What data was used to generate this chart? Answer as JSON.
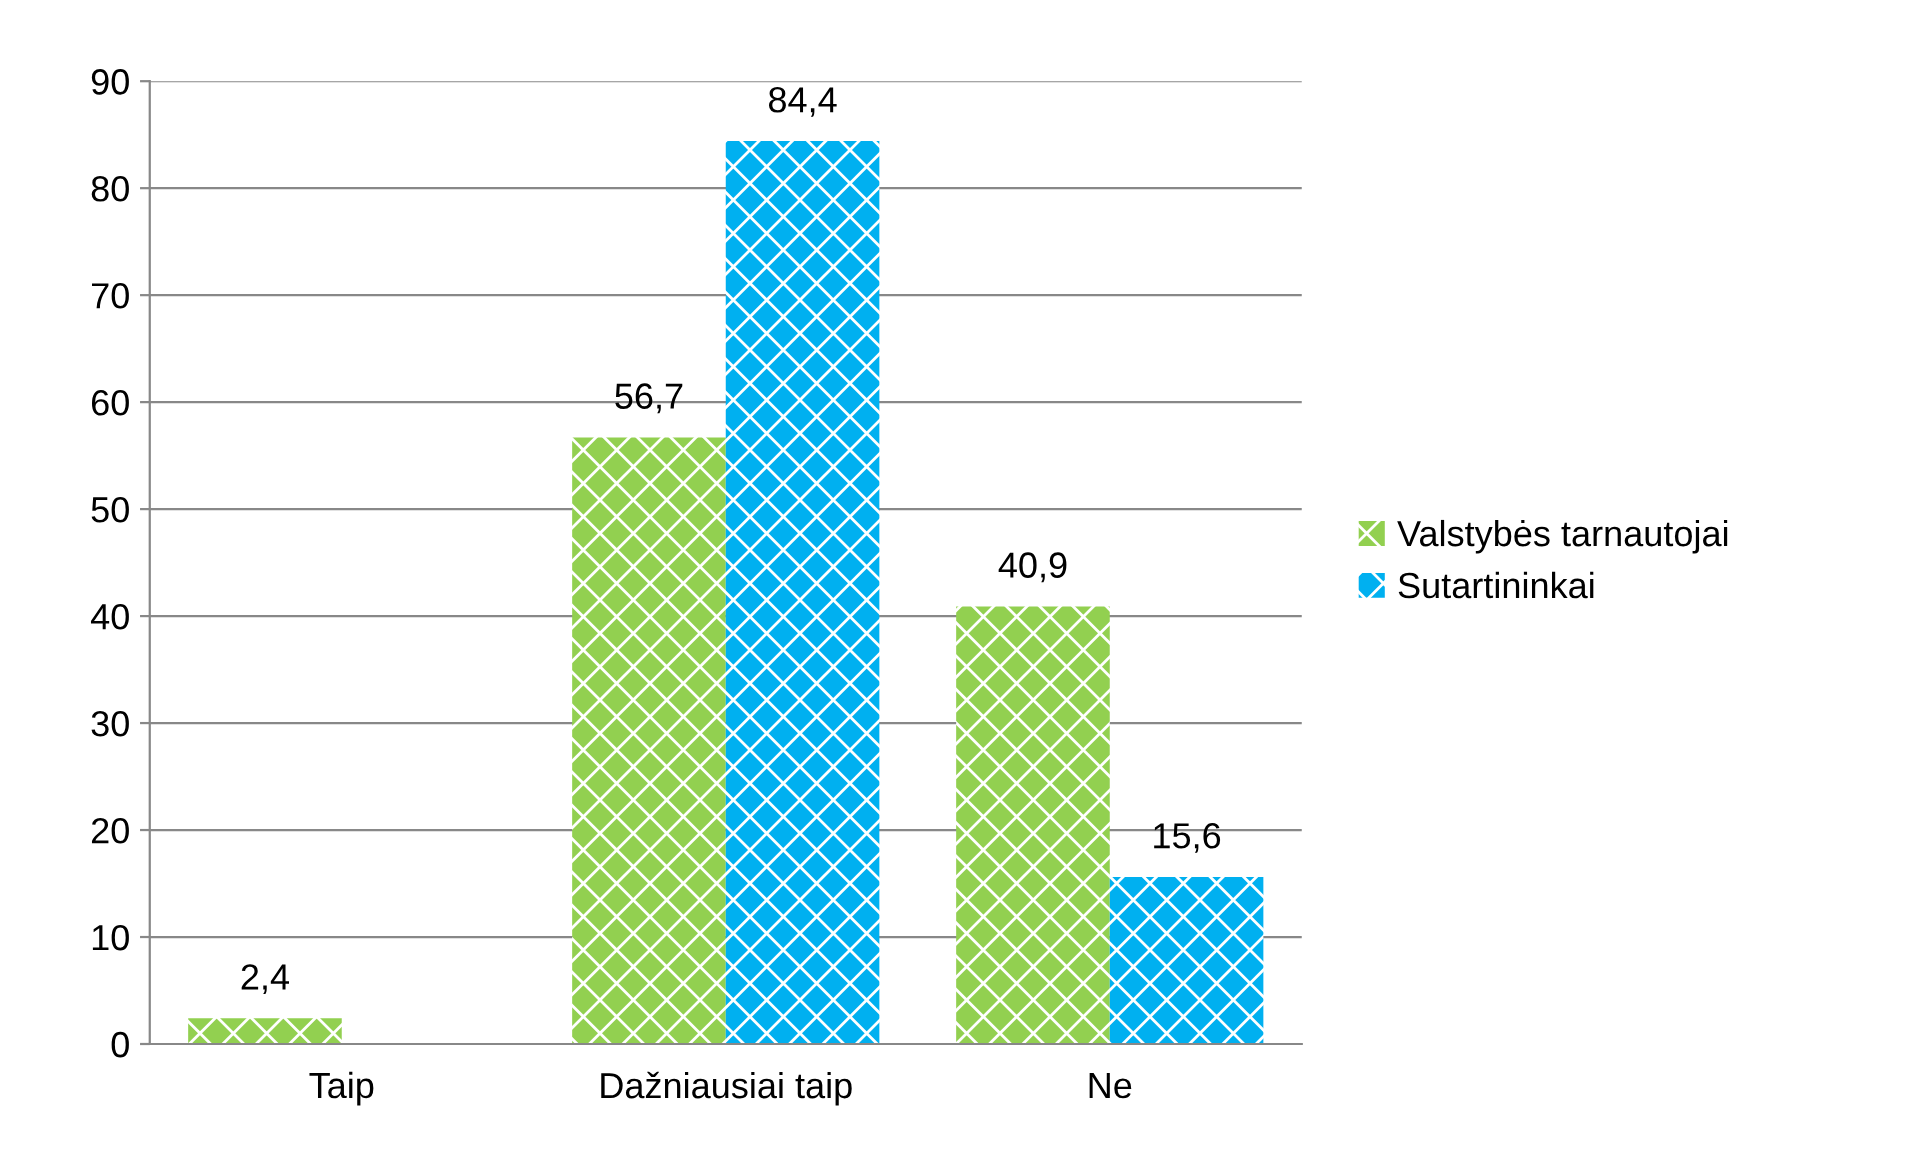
{
  "chart_data": {
    "type": "bar",
    "categories": [
      "Taip",
      "Dažniausiai taip",
      "Ne"
    ],
    "series": [
      {
        "name": "Valstybės tarnautojai",
        "color": "#92d050",
        "values": [
          2.4,
          56.7,
          40.9
        ],
        "value_labels": [
          "2,4",
          "56,7",
          "40,9"
        ]
      },
      {
        "name": "Sutartininkai",
        "color": "#00b0f0",
        "values": [
          null,
          84.4,
          15.6
        ],
        "value_labels": [
          null,
          "84,4",
          "15,6"
        ]
      }
    ],
    "ylim": [
      0,
      90
    ],
    "yticks": [
      0,
      10,
      20,
      30,
      40,
      50,
      60,
      70,
      80,
      90
    ],
    "grid": "y",
    "legend": "right"
  }
}
